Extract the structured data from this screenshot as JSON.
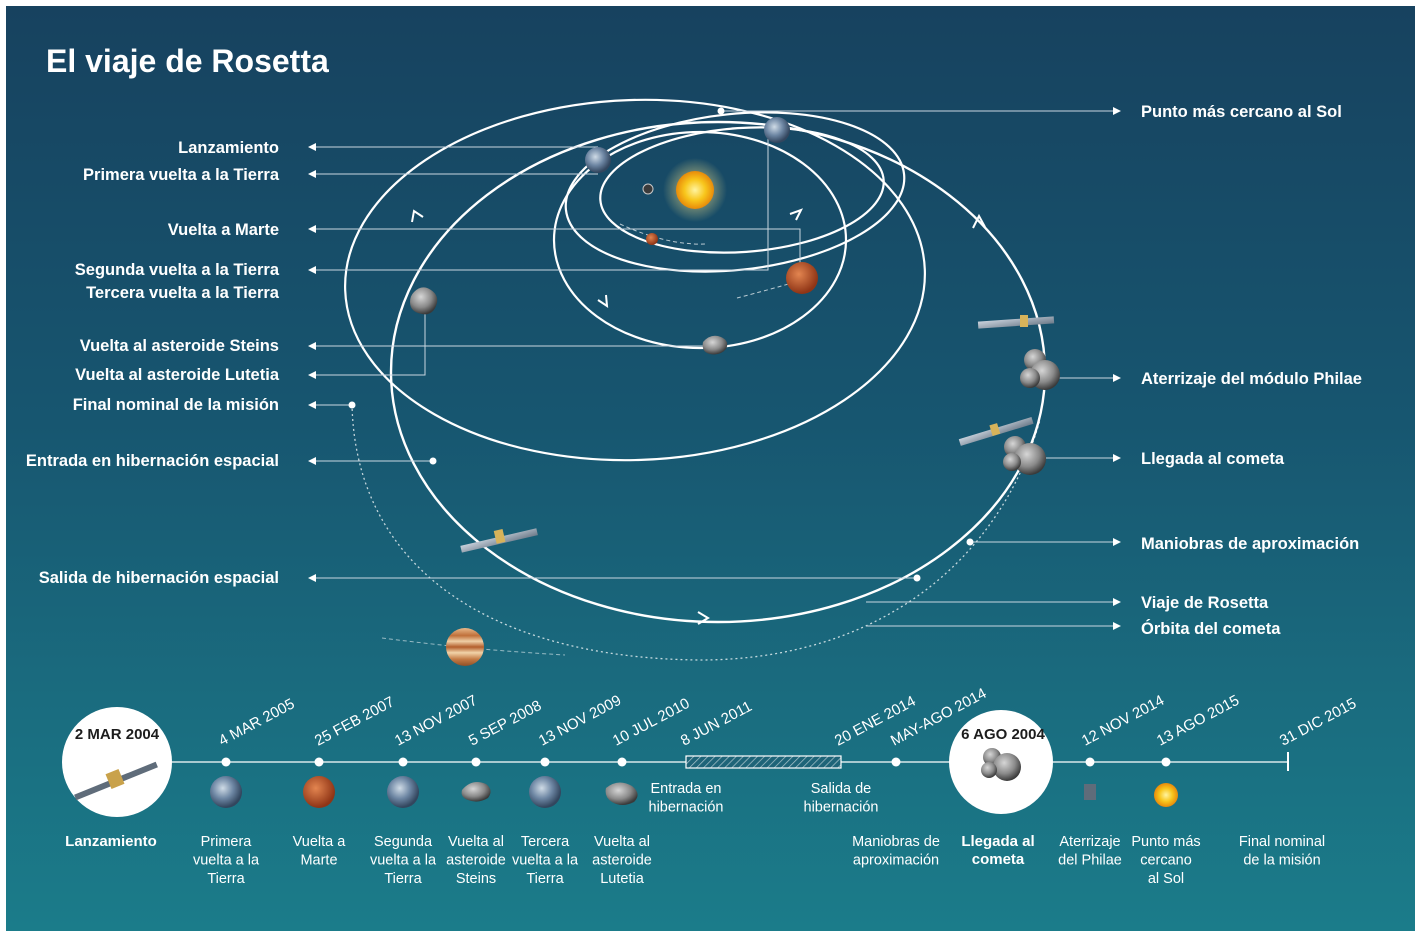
{
  "title": "El viaje de Rosetta",
  "diagram": {
    "left_labels": [
      "Lanzamiento",
      "Primera vuelta a la Tierra",
      "Vuelta a Marte",
      "Segunda vuelta a la Tierra",
      "Tercera vuelta a la Tierra",
      "Vuelta al asteroide Steins",
      "Vuelta al asteroide Lutetia",
      "Final nominal de la misión",
      "Entrada en hibernación espacial",
      "Salida de hibernación espacial"
    ],
    "right_labels": [
      "Punto más cercano al Sol",
      "Aterrizaje del módulo Philae",
      "Llegada al cometa",
      "Maniobras de aproximación",
      "Viaje de Rosetta",
      "Órbita del cometa"
    ]
  },
  "timeline": {
    "launch": {
      "date": "2 MAR 2004",
      "label": "Lanzamiento"
    },
    "arrival": {
      "date": "6 AGO 2004",
      "label": [
        "Llegada al",
        "cometa"
      ]
    },
    "events": [
      {
        "date": "4 MAR 2005",
        "label": [
          "Primera",
          "vuelta a la",
          "Tierra"
        ]
      },
      {
        "date": "25 FEB 2007",
        "label": [
          "Vuelta a",
          "Marte"
        ]
      },
      {
        "date": "13 NOV 2007",
        "label": [
          "Segunda",
          "vuelta a la",
          "Tierra"
        ]
      },
      {
        "date": "5 SEP 2008",
        "label": [
          "Vuelta al",
          "asteroide",
          "Steins"
        ]
      },
      {
        "date": "13 NOV 2009",
        "label": [
          "Tercera",
          "vuelta a la",
          "Tierra"
        ]
      },
      {
        "date": "10 JUL 2010",
        "label": [
          "Vuelta al",
          "asteroide",
          "Lutetia"
        ]
      },
      {
        "date": "8 JUN 2011",
        "label": [
          "Entrada en",
          "hibernación"
        ]
      },
      {
        "date": "20 ENE 2014",
        "label": [
          "Salida de",
          "hibernación"
        ]
      },
      {
        "date": "MAY-AGO 2014",
        "label": [
          "Maniobras de",
          "aproximación"
        ]
      },
      {
        "date": "12 NOV 2014",
        "label": [
          "Aterrizaje",
          "del Philae"
        ]
      },
      {
        "date": "13 AGO 2015",
        "label": [
          "Punto más",
          "cercano",
          "al Sol"
        ]
      },
      {
        "date": "31 DIC 2015",
        "label": [
          "Final nominal",
          "de la misión"
        ]
      }
    ]
  },
  "colors": {
    "background_top": "#17425f",
    "background_bottom": "#1b7c8a",
    "text": "#ffffff",
    "sun": "#f6c51f",
    "mars": "#c2552a",
    "jupiter": "#d89b5b",
    "earth": "#6c8aa8"
  }
}
